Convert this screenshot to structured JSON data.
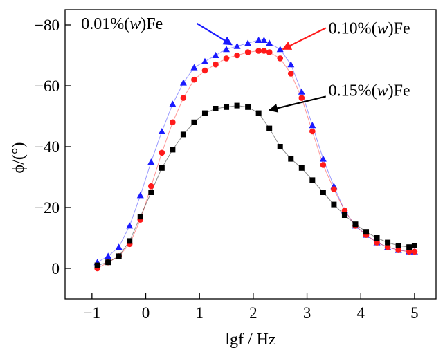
{
  "chart_data": {
    "type": "scatter",
    "xlabel": "lgf / Hz",
    "ylabel": "ϕ/(°)",
    "xlim": [
      -1.5,
      5.4
    ],
    "ylim": [
      10,
      -85
    ],
    "x_ticks": [
      -1,
      0,
      1,
      2,
      3,
      4,
      5
    ],
    "x_tick_labels": [
      "−1",
      "0",
      "1",
      "2",
      "3",
      "4",
      "5"
    ],
    "y_ticks": [
      0,
      -20,
      -40,
      -60,
      -80
    ],
    "y_tick_labels": [
      "0",
      "−20",
      "−40",
      "−60",
      "−80"
    ],
    "grid": false,
    "series": [
      {
        "name": "0.01%(w)Fe",
        "marker": "triangle",
        "color": "#1a1aff",
        "x": [
          -0.9,
          -0.7,
          -0.5,
          -0.3,
          -0.1,
          0.1,
          0.3,
          0.5,
          0.7,
          0.9,
          1.1,
          1.3,
          1.5,
          1.7,
          1.9,
          2.1,
          2.2,
          2.3,
          2.5,
          2.7,
          2.9,
          3.1,
          3.3,
          3.5,
          3.7,
          3.9,
          4.1,
          4.3,
          4.5,
          4.7,
          4.9,
          5.0
        ],
        "y": [
          -2,
          -4,
          -7,
          -14,
          -24,
          -35,
          -45,
          -54,
          -61,
          -66,
          -68,
          -70,
          -72,
          -73,
          -74,
          -75,
          -75,
          -74,
          -72,
          -67,
          -58,
          -47,
          -36,
          -27,
          -19,
          -14,
          -11,
          -8.5,
          -7,
          -6,
          -5.5,
          -5.5
        ]
      },
      {
        "name": "0.10%(w)Fe",
        "marker": "circle",
        "color": "#ff1a1a",
        "x": [
          -0.9,
          -0.7,
          -0.5,
          -0.3,
          -0.1,
          0.1,
          0.3,
          0.5,
          0.7,
          0.9,
          1.1,
          1.3,
          1.5,
          1.7,
          1.9,
          2.1,
          2.2,
          2.3,
          2.5,
          2.7,
          2.9,
          3.1,
          3.3,
          3.5,
          3.7,
          3.9,
          4.1,
          4.3,
          4.5,
          4.7,
          4.9,
          5.0
        ],
        "y": [
          0,
          -2,
          -4,
          -8,
          -16,
          -27,
          -38,
          -48,
          -56,
          -62,
          -65,
          -67,
          -69,
          -70,
          -71,
          -71.5,
          -71.5,
          -71,
          -69,
          -64,
          -56,
          -45,
          -34,
          -26,
          -19,
          -14,
          -11,
          -8.5,
          -7,
          -6,
          -5.5,
          -5.5
        ]
      },
      {
        "name": "0.15%(w)Fe",
        "marker": "square",
        "color": "#000000",
        "x": [
          -0.9,
          -0.7,
          -0.5,
          -0.3,
          -0.1,
          0.1,
          0.3,
          0.5,
          0.7,
          0.9,
          1.1,
          1.3,
          1.5,
          1.7,
          1.9,
          2.1,
          2.3,
          2.5,
          2.7,
          2.9,
          3.1,
          3.3,
          3.5,
          3.7,
          3.9,
          4.1,
          4.3,
          4.5,
          4.7,
          4.9,
          5.0
        ],
        "y": [
          -1,
          -2,
          -4,
          -9,
          -17,
          -25,
          -33,
          -39,
          -44,
          -48,
          -51,
          -52.5,
          -53,
          -53.5,
          -53,
          -51,
          -46,
          -40,
          -36,
          -33,
          -29,
          -25,
          -21,
          -17.5,
          -14.5,
          -12,
          -10,
          -8.5,
          -7.5,
          -7,
          -7.5
        ]
      }
    ],
    "annotations": [
      {
        "series": "0.01%(w)Fe",
        "text_parts": [
          "0.01",
          "%(",
          "w",
          ")Fe"
        ],
        "tx": -1.2,
        "ty": -80.5,
        "ax0": 0.95,
        "ay0": -80.5,
        "ax1": 1.6,
        "ay1": -73.5,
        "color": "#1a1aff"
      },
      {
        "series": "0.10%(w)Fe",
        "text_parts": [
          "0.10",
          "%(",
          "w",
          ")Fe"
        ],
        "tx": 3.4,
        "ty": -79,
        "ax0": 3.35,
        "ay0": -79,
        "ax1": 2.55,
        "ay1": -72,
        "color": "#ff1a1a"
      },
      {
        "series": "0.15%(w)Fe",
        "text_parts": [
          "0.15",
          "%(",
          "w",
          ")Fe"
        ],
        "tx": 3.4,
        "ty": -58.5,
        "ax0": 3.35,
        "ay0": -56.5,
        "ax1": 2.3,
        "ay1": -52,
        "color": "#000000"
      }
    ]
  }
}
